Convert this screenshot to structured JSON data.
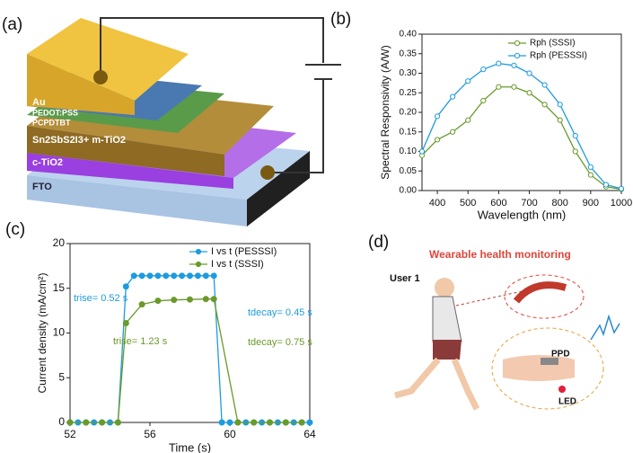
{
  "panel_labels": [
    "(a)",
    "(b)",
    "(c)",
    "(d)"
  ],
  "diagram": {
    "layers": [
      "Au",
      "PEDOT:PSS",
      "PCPDTBT",
      "Sn2SbS2I3+ m-TiO2",
      "c-TiO2",
      "FTO"
    ]
  },
  "illustration": {
    "title": "Wearable health monitoring",
    "user": "User 1",
    "sensor": "PPD",
    "source": "LED"
  },
  "chart_data": [
    {
      "type": "line",
      "xlabel": "Wavelength (nm)",
      "ylabel": "Spectral Responsivity (A/W)",
      "x": [
        350,
        400,
        450,
        500,
        550,
        600,
        650,
        700,
        750,
        800,
        850,
        900,
        950,
        1000
      ],
      "series": [
        {
          "name": "Rph (SSSI)",
          "color": "#6a9a2a",
          "values": [
            0.09,
            0.13,
            0.15,
            0.18,
            0.23,
            0.265,
            0.265,
            0.25,
            0.22,
            0.18,
            0.1,
            0.04,
            0.01,
            0.003
          ]
        },
        {
          "name": "Rph (PESSSI)",
          "color": "#1e9be0",
          "values": [
            0.1,
            0.19,
            0.24,
            0.28,
            0.31,
            0.325,
            0.32,
            0.3,
            0.27,
            0.22,
            0.14,
            0.06,
            0.015,
            0.005
          ]
        }
      ],
      "xlim": [
        350,
        1000
      ],
      "xticks": [
        400,
        500,
        600,
        700,
        800,
        900,
        1000
      ],
      "ylim": [
        0,
        0.4
      ],
      "yticks": [
        {
          "value": 0,
          "label": "0.00"
        },
        0.05,
        {
          "value": 0.1,
          "label": "0.10"
        },
        0.15,
        {
          "value": 0.2,
          "label": "0.20"
        },
        0.25,
        {
          "value": 0.3,
          "label": "0.30"
        },
        0.35,
        {
          "value": 0.4,
          "label": "0.40"
        }
      ],
      "legend": "upper right"
    },
    {
      "type": "line",
      "xlabel": "Time (s)",
      "ylabel": "Current density (mA/cm²)",
      "series": [
        {
          "name": "I vs t (PESSSI)",
          "color": "#1e9be0",
          "x": [
            52,
            52.4,
            52.8,
            53.2,
            53.6,
            54,
            54.4,
            54.8,
            55.2,
            55.6,
            56,
            56.4,
            56.8,
            57.2,
            57.6,
            58,
            58.4,
            58.8,
            59.2,
            59.6,
            60,
            60.4,
            60.8,
            61.2,
            61.6,
            62,
            62.4,
            62.8,
            63.2,
            63.6,
            64
          ],
          "values": [
            0,
            0,
            0,
            0,
            0,
            0,
            0,
            15.2,
            16.4,
            16.4,
            16.4,
            16.4,
            16.4,
            16.4,
            16.4,
            16.4,
            16.4,
            16.4,
            16.4,
            0,
            0,
            0,
            0,
            0,
            0,
            0,
            0,
            0,
            0,
            0,
            0
          ]
        },
        {
          "name": "I vs t (SSSI)",
          "color": "#6a9a2a",
          "x": [
            52,
            52.8,
            53.6,
            54.4,
            54.8,
            55.6,
            56.4,
            57.2,
            58,
            58.8,
            59.2,
            60.4,
            61.2,
            62,
            62.8,
            63.6
          ],
          "values": [
            0,
            0,
            0,
            0,
            11.1,
            13.2,
            13.6,
            13.7,
            13.75,
            13.8,
            13.8,
            0,
            0,
            0,
            0,
            0
          ]
        }
      ],
      "xlim": [
        52,
        64
      ],
      "xticks": [
        52,
        56,
        60,
        64
      ],
      "ylim": [
        0,
        20
      ],
      "yticks": [
        0,
        5,
        10,
        15,
        20
      ],
      "legend": "upper right",
      "annotations": [
        {
          "text": "trise= 0.52 s",
          "color": "#1e9be0"
        },
        {
          "text": "tdecay= 0.45 s",
          "color": "#1e9be0"
        },
        {
          "text": "trise= 1.23 s",
          "color": "#6a9a2a"
        },
        {
          "text": "tdecay= 0.75 s",
          "color": "#6a9a2a"
        }
      ]
    }
  ]
}
